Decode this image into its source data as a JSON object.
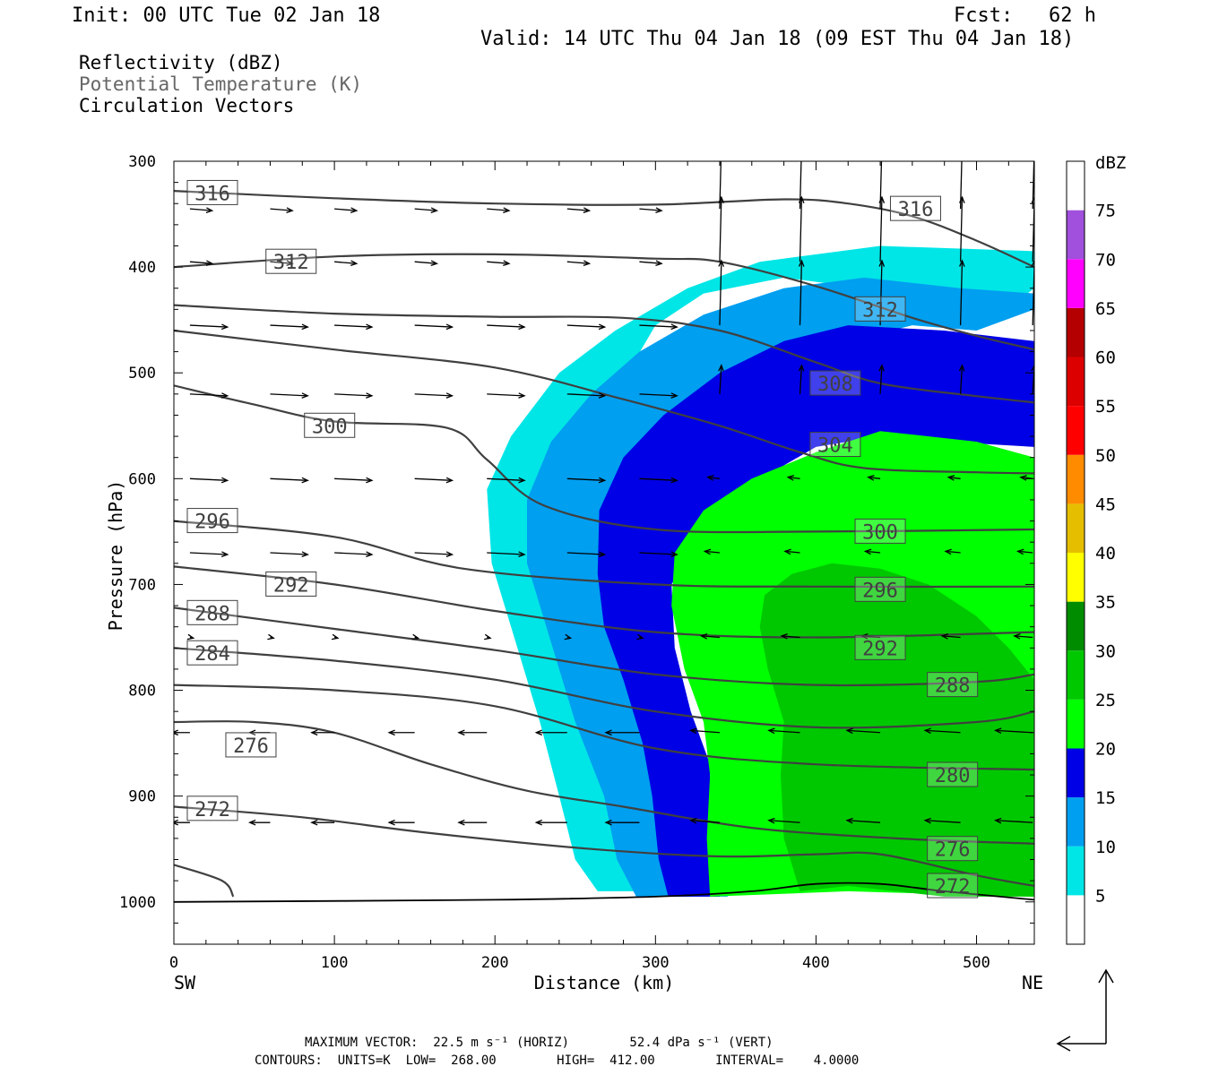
{
  "header": {
    "init": "Init: 00 UTC Tue 02 Jan 18",
    "fcst": "Fcst:   62 h",
    "valid": "Valid: 14 UTC Thu 04 Jan 18 (09 EST Thu 04 Jan 18)"
  },
  "legend_lines": {
    "line1": "Reflectivity (dBZ)",
    "line2": "Potential Temperature (K)",
    "line3": "Circulation Vectors"
  },
  "footer": {
    "line1": "MAXIMUM VECTOR:  22.5 m s⁻¹ (HORIZ)        52.4 dPa s⁻¹ (VERT)",
    "line2": "CONTOURS:  UNITS=K  LOW=  268.00        HIGH=  412.00        INTERVAL=    4.0000"
  },
  "chart_data": {
    "type": "contour-cross-section",
    "xlabel": "Distance (km)",
    "ylabel": "Pressure (hPa)",
    "x_end_labels": {
      "left": "SW",
      "right": "NE"
    },
    "xlim": [
      0,
      536
    ],
    "ylim": [
      1040,
      300
    ],
    "x_ticks": [
      0,
      100,
      200,
      300,
      400,
      500
    ],
    "y_ticks": [
      300,
      400,
      500,
      600,
      700,
      800,
      900,
      1000
    ],
    "colorbar": {
      "title": "dBZ",
      "levels": [
        5,
        10,
        15,
        20,
        25,
        30,
        35,
        40,
        45,
        50,
        55,
        60,
        65,
        70,
        75
      ],
      "colors": [
        "#00e6e6",
        "#009ff0",
        "#0000e6",
        "#00ff00",
        "#00c800",
        "#008c00",
        "#ffff00",
        "#e6be00",
        "#ff8c00",
        "#ff0000",
        "#dc0000",
        "#b40000",
        "#ff00ff",
        "#a050dc",
        "#ffffff"
      ]
    },
    "reflectivity_regions": [
      {
        "dbz": 5,
        "color": "#00e6e6",
        "polygon": [
          [
            264,
            990
          ],
          [
            250,
            960
          ],
          [
            240,
            900
          ],
          [
            228,
            830
          ],
          [
            214,
            760
          ],
          [
            198,
            680
          ],
          [
            195,
            610
          ],
          [
            210,
            560
          ],
          [
            240,
            500
          ],
          [
            275,
            460
          ],
          [
            320,
            420
          ],
          [
            365,
            395
          ],
          [
            440,
            380
          ],
          [
            536,
            385
          ],
          [
            536,
            420
          ],
          [
            510,
            450
          ],
          [
            470,
            445
          ],
          [
            430,
            420
          ],
          [
            380,
            410
          ],
          [
            330,
            425
          ],
          [
            300,
            455
          ],
          [
            275,
            520
          ],
          [
            260,
            600
          ],
          [
            256,
            680
          ],
          [
            270,
            760
          ],
          [
            292,
            850
          ],
          [
            303,
            920
          ],
          [
            310,
            990
          ]
        ]
      },
      {
        "dbz": 10,
        "color": "#009ff0",
        "polygon": [
          [
            288,
            995
          ],
          [
            276,
            960
          ],
          [
            268,
            900
          ],
          [
            250,
            830
          ],
          [
            236,
            760
          ],
          [
            220,
            680
          ],
          [
            220,
            620
          ],
          [
            235,
            565
          ],
          [
            260,
            520
          ],
          [
            290,
            480
          ],
          [
            330,
            445
          ],
          [
            380,
            420
          ],
          [
            430,
            410
          ],
          [
            490,
            420
          ],
          [
            536,
            425
          ],
          [
            536,
            440
          ],
          [
            500,
            460
          ],
          [
            460,
            455
          ],
          [
            420,
            470
          ],
          [
            380,
            495
          ],
          [
            340,
            520
          ],
          [
            310,
            560
          ],
          [
            300,
            620
          ],
          [
            300,
            700
          ],
          [
            310,
            770
          ],
          [
            325,
            850
          ],
          [
            335,
            920
          ],
          [
            345,
            995
          ]
        ]
      },
      {
        "dbz": 15,
        "color": "#0000e6",
        "polygon": [
          [
            308,
            995
          ],
          [
            302,
            960
          ],
          [
            298,
            900
          ],
          [
            292,
            850
          ],
          [
            280,
            790
          ],
          [
            268,
            740
          ],
          [
            264,
            690
          ],
          [
            265,
            630
          ],
          [
            280,
            580
          ],
          [
            305,
            540
          ],
          [
            340,
            500
          ],
          [
            380,
            470
          ],
          [
            420,
            455
          ],
          [
            480,
            460
          ],
          [
            536,
            470
          ],
          [
            536,
            570
          ],
          [
            480,
            565
          ],
          [
            440,
            560
          ],
          [
            400,
            570
          ],
          [
            360,
            605
          ],
          [
            330,
            650
          ],
          [
            310,
            700
          ],
          [
            312,
            760
          ],
          [
            322,
            820
          ],
          [
            334,
            870
          ],
          [
            334,
            930
          ],
          [
            340,
            995
          ]
        ]
      },
      {
        "dbz": 20,
        "color": "#00ff00",
        "polygon": [
          [
            334,
            995
          ],
          [
            332,
            940
          ],
          [
            334,
            880
          ],
          [
            330,
            830
          ],
          [
            318,
            780
          ],
          [
            310,
            720
          ],
          [
            312,
            670
          ],
          [
            330,
            630
          ],
          [
            360,
            600
          ],
          [
            400,
            575
          ],
          [
            440,
            555
          ],
          [
            500,
            565
          ],
          [
            536,
            580
          ],
          [
            536,
            995
          ],
          [
            420,
            990
          ]
        ]
      },
      {
        "dbz": 25,
        "color": "#00c800",
        "polygon": [
          [
            390,
            990
          ],
          [
            380,
            940
          ],
          [
            378,
            880
          ],
          [
            380,
            830
          ],
          [
            370,
            780
          ],
          [
            365,
            740
          ],
          [
            368,
            710
          ],
          [
            385,
            690
          ],
          [
            410,
            680
          ],
          [
            440,
            685
          ],
          [
            470,
            700
          ],
          [
            500,
            730
          ],
          [
            520,
            760
          ],
          [
            536,
            790
          ],
          [
            536,
            995
          ],
          [
            480,
            995
          ],
          [
            420,
            985
          ]
        ]
      }
    ],
    "isentropes": [
      {
        "theta": 316,
        "label_at": [
          [
            24,
            330
          ],
          [
            462,
            345
          ]
        ],
        "points": [
          [
            0,
            328
          ],
          [
            100,
            335
          ],
          [
            200,
            340
          ],
          [
            300,
            341
          ],
          [
            380,
            336
          ],
          [
            420,
            340
          ],
          [
            460,
            352
          ],
          [
            500,
            375
          ],
          [
            536,
            400
          ]
        ]
      },
      {
        "theta": 312,
        "label_at": [
          [
            73,
            395
          ],
          [
            440,
            440
          ]
        ],
        "points": [
          [
            0,
            400
          ],
          [
            100,
            390
          ],
          [
            200,
            388
          ],
          [
            300,
            392
          ],
          [
            340,
            395
          ],
          [
            400,
            418
          ],
          [
            460,
            448
          ],
          [
            500,
            465
          ],
          [
            536,
            478
          ]
        ]
      },
      {
        "theta": 308,
        "label_at": [
          [
            412,
            510
          ]
        ],
        "points": [
          [
            0,
            436
          ],
          [
            100,
            444
          ],
          [
            200,
            447
          ],
          [
            280,
            448
          ],
          [
            340,
            460
          ],
          [
            400,
            490
          ],
          [
            440,
            510
          ],
          [
            500,
            522
          ],
          [
            536,
            528
          ]
        ]
      },
      {
        "theta": 304,
        "label_at": [
          [
            412,
            568
          ]
        ],
        "points": [
          [
            0,
            460
          ],
          [
            100,
            478
          ],
          [
            200,
            495
          ],
          [
            280,
            525
          ],
          [
            340,
            550
          ],
          [
            390,
            575
          ],
          [
            430,
            590
          ],
          [
            500,
            594
          ],
          [
            536,
            595
          ]
        ]
      },
      {
        "theta": 300,
        "label_at": [
          [
            97,
            550
          ],
          [
            440,
            650
          ]
        ],
        "points": [
          [
            0,
            512
          ],
          [
            50,
            530
          ],
          [
            100,
            546
          ],
          [
            170,
            552
          ],
          [
            195,
            582
          ],
          [
            230,
            625
          ],
          [
            300,
            648
          ],
          [
            400,
            650
          ],
          [
            536,
            648
          ]
        ]
      },
      {
        "theta": 296,
        "label_at": [
          [
            24,
            640
          ],
          [
            440,
            705
          ]
        ],
        "points": [
          [
            0,
            640
          ],
          [
            100,
            655
          ],
          [
            180,
            685
          ],
          [
            300,
            700
          ],
          [
            400,
            702
          ],
          [
            536,
            702
          ]
        ]
      },
      {
        "theta": 292,
        "label_at": [
          [
            73,
            700
          ],
          [
            440,
            760
          ]
        ],
        "points": [
          [
            0,
            683
          ],
          [
            100,
            700
          ],
          [
            200,
            725
          ],
          [
            300,
            745
          ],
          [
            400,
            750
          ],
          [
            536,
            745
          ]
        ]
      },
      {
        "theta": 288,
        "label_at": [
          [
            24,
            727
          ],
          [
            485,
            795
          ]
        ],
        "points": [
          [
            0,
            722
          ],
          [
            100,
            742
          ],
          [
            200,
            762
          ],
          [
            300,
            785
          ],
          [
            400,
            795
          ],
          [
            500,
            792
          ],
          [
            536,
            785
          ]
        ]
      },
      {
        "theta": 284,
        "label_at": [
          [
            24,
            765
          ]
        ],
        "points": [
          [
            0,
            760
          ],
          [
            100,
            772
          ],
          [
            200,
            790
          ],
          [
            300,
            820
          ],
          [
            400,
            835
          ],
          [
            500,
            830
          ],
          [
            536,
            820
          ]
        ]
      },
      {
        "theta": 280,
        "label_at": [
          [
            485,
            880
          ]
        ],
        "points": [
          [
            0,
            795
          ],
          [
            100,
            800
          ],
          [
            200,
            815
          ],
          [
            300,
            855
          ],
          [
            400,
            870
          ],
          [
            536,
            875
          ]
        ]
      },
      {
        "theta": 276,
        "label_at": [
          [
            48,
            852
          ],
          [
            485,
            950
          ]
        ],
        "points": [
          [
            0,
            830
          ],
          [
            50,
            830
          ],
          [
            100,
            840
          ],
          [
            160,
            870
          ],
          [
            220,
            895
          ],
          [
            280,
            910
          ],
          [
            360,
            930
          ],
          [
            450,
            940
          ],
          [
            536,
            945
          ]
        ]
      },
      {
        "theta": 272,
        "label_at": [
          [
            24,
            912
          ],
          [
            485,
            985
          ]
        ],
        "points": [
          [
            0,
            910
          ],
          [
            80,
            920
          ],
          [
            160,
            935
          ],
          [
            260,
            950
          ],
          [
            340,
            957
          ],
          [
            400,
            955
          ],
          [
            440,
            955
          ],
          [
            500,
            975
          ],
          [
            536,
            985
          ]
        ]
      },
      {
        "theta": 268,
        "label_at": [],
        "points": [
          [
            0,
            965
          ],
          [
            30,
            980
          ],
          [
            37,
            995
          ]
        ]
      }
    ],
    "ground_line": [
      [
        0,
        1000
      ],
      [
        200,
        998
      ],
      [
        300,
        995
      ],
      [
        360,
        990
      ],
      [
        400,
        983
      ],
      [
        440,
        983
      ],
      [
        480,
        990
      ],
      [
        536,
        998
      ]
    ]
  }
}
